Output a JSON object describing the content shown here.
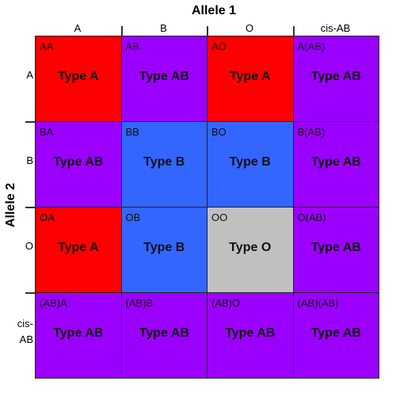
{
  "column_title": "Allele 1",
  "row_title": "Allele 2",
  "columns": [
    "A",
    "B",
    "O",
    "cis-AB"
  ],
  "rows": [
    "A",
    "B",
    "O",
    "cis-AB"
  ],
  "cells": [
    [
      {
        "genotype": "AA",
        "type": "Type A",
        "color": "#ff0000"
      },
      {
        "genotype": "AB",
        "type": "Type AB",
        "color": "#9b00ff"
      },
      {
        "genotype": "AO",
        "type": "Type A",
        "color": "#ff0000"
      },
      {
        "genotype": "A(AB)",
        "type": "Type AB",
        "color": "#9b00ff"
      }
    ],
    [
      {
        "genotype": "BA",
        "type": "Type AB",
        "color": "#9b00ff"
      },
      {
        "genotype": "BB",
        "type": "Type B",
        "color": "#3366ff"
      },
      {
        "genotype": "BO",
        "type": "Type B",
        "color": "#3366ff"
      },
      {
        "genotype": "B(AB)",
        "type": "Type AB",
        "color": "#9b00ff"
      }
    ],
    [
      {
        "genotype": "OA",
        "type": "Type A",
        "color": "#ff0000"
      },
      {
        "genotype": "OB",
        "type": "Type B",
        "color": "#3366ff"
      },
      {
        "genotype": "OO",
        "type": "Type O",
        "color": "#c0c0c0"
      },
      {
        "genotype": "O(AB)",
        "type": "Type AB",
        "color": "#9b00ff"
      }
    ],
    [
      {
        "genotype": "(AB)A",
        "type": "Type AB",
        "color": "#9b00ff"
      },
      {
        "genotype": "(AB)B",
        "type": "Type AB",
        "color": "#9b00ff"
      },
      {
        "genotype": "(AB)O",
        "type": "Type AB",
        "color": "#9b00ff"
      },
      {
        "genotype": "(AB)(AB)",
        "type": "Type AB",
        "color": "#9b00ff"
      }
    ]
  ]
}
